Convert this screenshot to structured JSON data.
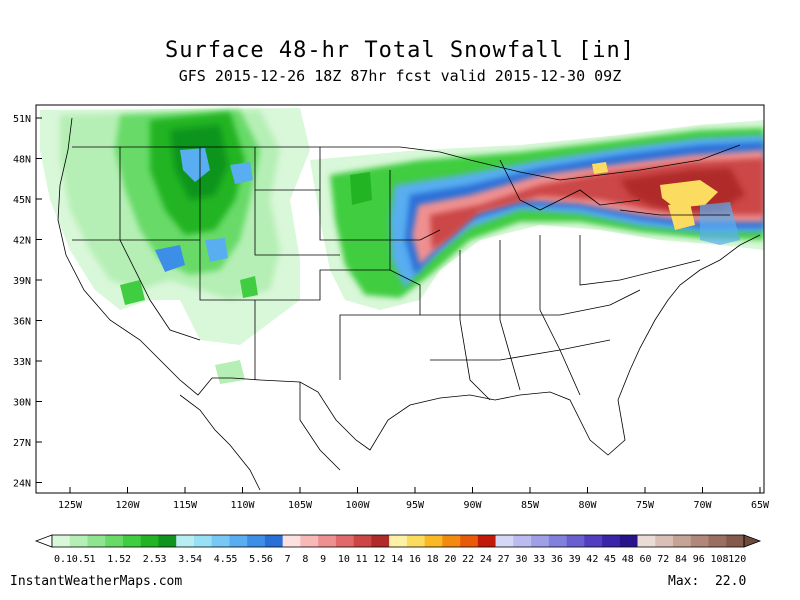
{
  "title": "Surface 48-hr Total Snowfall [in]",
  "subtitle": "GFS 2015-12-26 18Z 87hr fcst valid 2015-12-30 09Z",
  "footer": {
    "site": "InstantWeatherMaps.com",
    "max_label": "Max:",
    "max_value": "22.0"
  },
  "lat_labels": [
    "51N",
    "48N",
    "45N",
    "42N",
    "39N",
    "36N",
    "33N",
    "30N",
    "27N",
    "24N"
  ],
  "lon_labels": [
    "125W",
    "120W",
    "115W",
    "110W",
    "105W",
    "100W",
    "95W",
    "90W",
    "85W",
    "80W",
    "75W",
    "70W",
    "65W"
  ],
  "colorbar": {
    "labels": [
      "0.1",
      "0.5",
      "1",
      "1.5",
      "2",
      "2.5",
      "3",
      "3.5",
      "4",
      "4.5",
      "5",
      "5.5",
      "6",
      "7",
      "8",
      "9",
      "10",
      "11",
      "12",
      "14",
      "16",
      "18",
      "20",
      "22",
      "24",
      "27",
      "30",
      "33",
      "36",
      "39",
      "42",
      "45",
      "48",
      "60",
      "72",
      "84",
      "96",
      "108",
      "120"
    ],
    "colors": [
      "#d9f7d9",
      "#b5efb5",
      "#8fe58f",
      "#68da68",
      "#41cd41",
      "#22b422",
      "#11941f",
      "#b8eef2",
      "#98e0f5",
      "#78c8f5",
      "#58aef0",
      "#3c8ee6",
      "#2a6fd8",
      "#fde0e0",
      "#f7b8b8",
      "#ef9090",
      "#e06a6a",
      "#cc4646",
      "#b02a2a",
      "#fdf1a8",
      "#fbdb60",
      "#f9b824",
      "#f38a10",
      "#e85a0a",
      "#c21a0a",
      "#d6d6f5",
      "#bbbbf0",
      "#9f9fe8",
      "#8080dd",
      "#6a5fd0",
      "#523fc0",
      "#3a25a8",
      "#28148a",
      "#eadbd6",
      "#d9bfb6",
      "#c6a397",
      "#b0877a",
      "#9a6e60",
      "#845a4c"
    ]
  }
}
